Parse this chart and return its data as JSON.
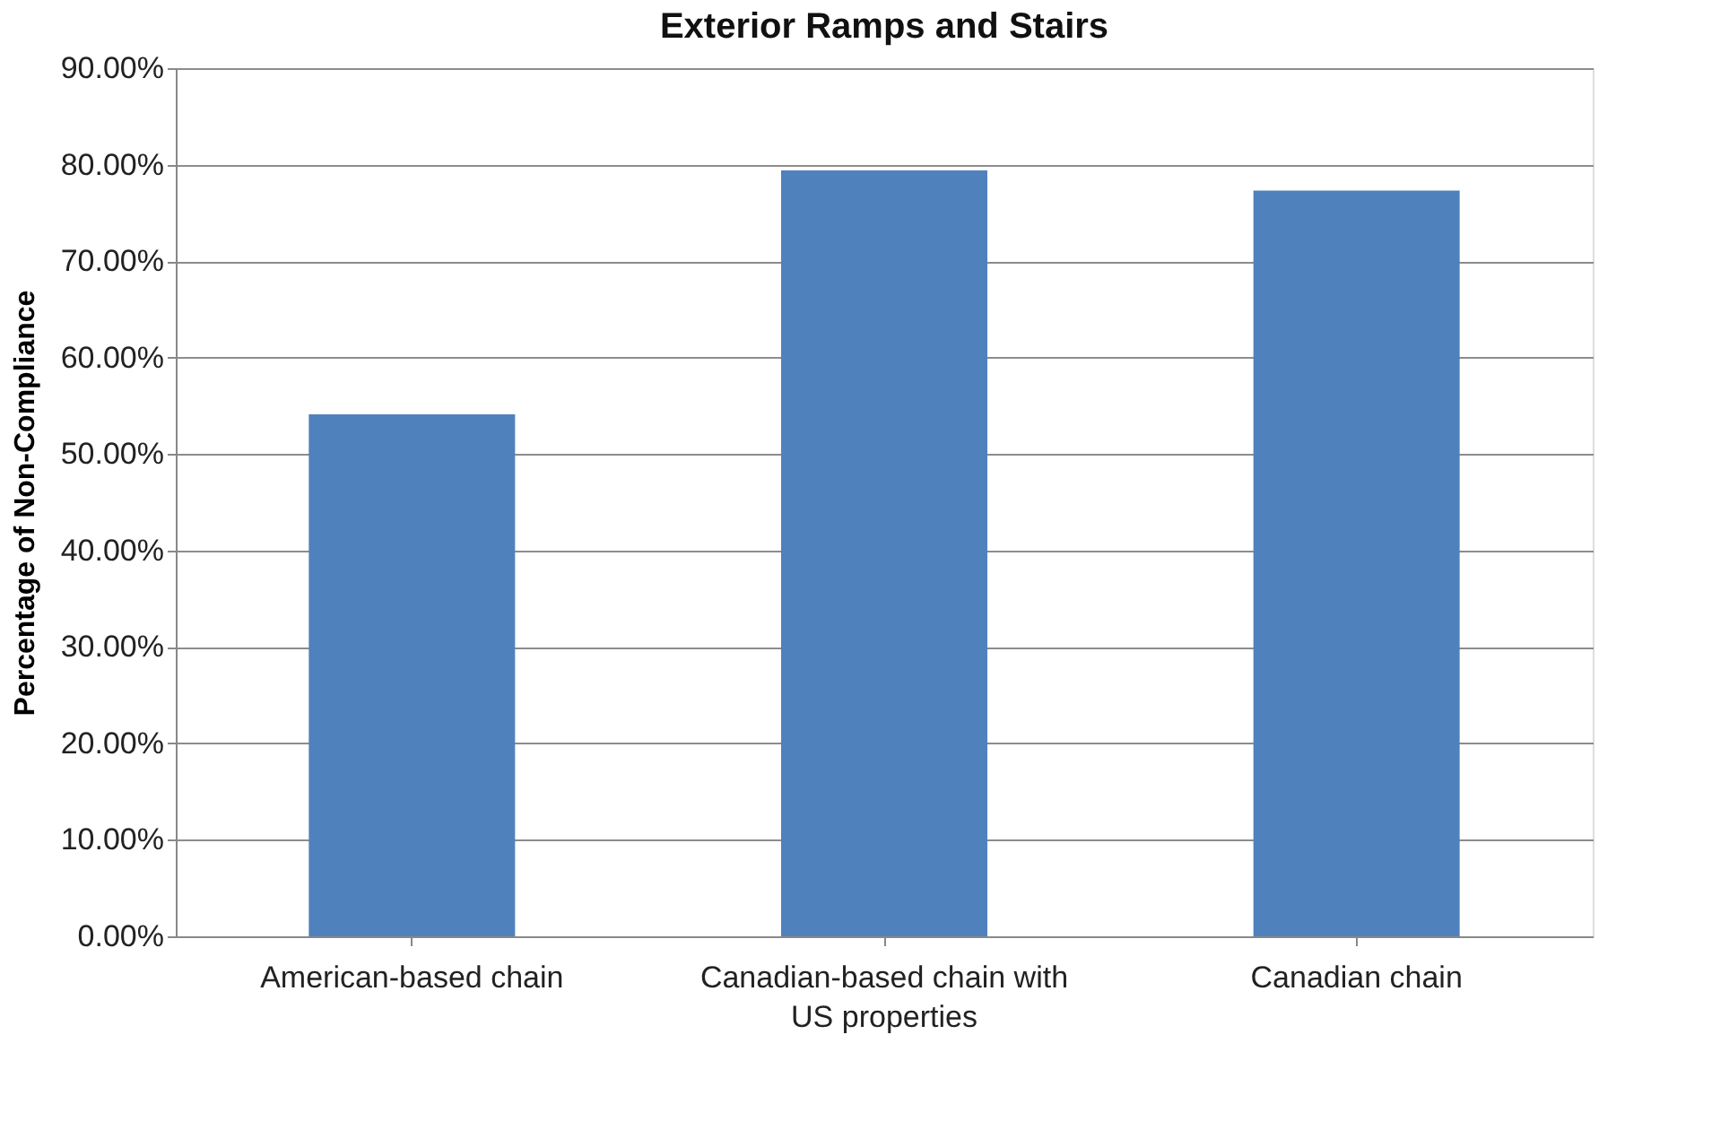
{
  "chart_data": {
    "type": "bar",
    "title": "Exterior Ramps and Stairs",
    "ylabel": "Percentage of Non-Compliance",
    "categories": [
      "American-based chain",
      "Canadian-based chain with US properties",
      "Canadian chain"
    ],
    "values": [
      54.1,
      79.4,
      77.3
    ],
    "color": "#4f81bd",
    "ylim": [
      0,
      90
    ],
    "yticks": [
      {
        "value": 0,
        "label": "0.00%"
      },
      {
        "value": 10,
        "label": "10.00%"
      },
      {
        "value": 20,
        "label": "20.00%"
      },
      {
        "value": 30,
        "label": "30.00%"
      },
      {
        "value": 40,
        "label": "40.00%"
      },
      {
        "value": 50,
        "label": "50.00%"
      },
      {
        "value": 60,
        "label": "60.00%"
      },
      {
        "value": 70,
        "label": "70.00%"
      },
      {
        "value": 80,
        "label": "80.00%"
      },
      {
        "value": 90,
        "label": "90.00%"
      }
    ],
    "grid": "y"
  }
}
